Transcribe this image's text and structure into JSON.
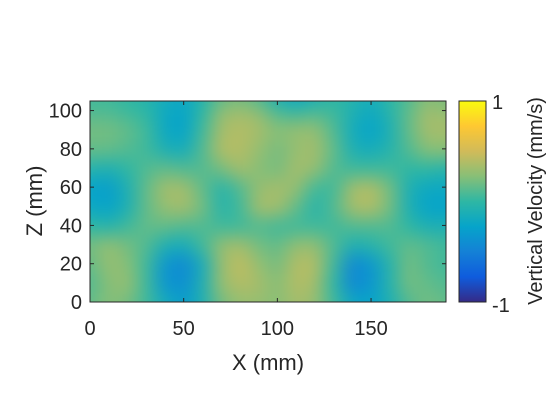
{
  "chart_data": {
    "type": "heatmap",
    "title": "",
    "xlabel": "X (mm)",
    "ylabel": "Z (mm)",
    "xlim": [
      0,
      190
    ],
    "ylim": [
      0,
      105
    ],
    "xticks": [
      0,
      50,
      100,
      150
    ],
    "yticks": [
      0,
      20,
      40,
      60,
      80,
      100
    ],
    "x_tick_labels": [
      "0",
      "50",
      "100",
      "150"
    ],
    "y_tick_labels": [
      "0",
      "20",
      "40",
      "60",
      "80",
      "100"
    ],
    "colorbar": {
      "label": "Vertical Velocity  (mm/s)",
      "min": -1,
      "max": 1,
      "tick_labels": [
        "1",
        "-1"
      ],
      "colormap": "parula",
      "colors": [
        "#352a87",
        "#0f5cdd",
        "#1481d6",
        "#06a4ca",
        "#2eb7a4",
        "#87bf77",
        "#d1bb59",
        "#fec832",
        "#f9fb0e"
      ]
    },
    "x": [
      0,
      10,
      20,
      30,
      40,
      50,
      60,
      70,
      80,
      90,
      100,
      110,
      120,
      130,
      140,
      150,
      160,
      170,
      180,
      190
    ],
    "z": [
      0,
      10,
      20,
      30,
      40,
      50,
      60,
      70,
      80,
      90,
      100,
      105
    ],
    "values": [
      [
        0.15,
        0.25,
        0.2,
        0.05,
        -0.15,
        -0.3,
        -0.1,
        0.2,
        0.3,
        0.3,
        0.25,
        0.35,
        0.3,
        0.05,
        -0.2,
        -0.25,
        -0.1,
        0.1,
        0.2,
        0.15
      ],
      [
        0.1,
        0.25,
        0.3,
        0.05,
        -0.35,
        -0.4,
        -0.1,
        0.3,
        0.4,
        0.35,
        0.25,
        0.4,
        0.35,
        0.0,
        -0.45,
        -0.35,
        -0.05,
        0.2,
        0.15,
        0.1
      ],
      [
        0.15,
        0.3,
        0.25,
        0.05,
        -0.35,
        -0.45,
        -0.15,
        0.3,
        0.45,
        0.3,
        0.2,
        0.4,
        0.4,
        0.05,
        -0.45,
        -0.35,
        -0.05,
        0.2,
        0.1,
        0.05
      ],
      [
        0.2,
        0.3,
        0.2,
        0.1,
        -0.1,
        -0.15,
        0.05,
        0.3,
        0.35,
        0.2,
        0.15,
        0.3,
        0.3,
        0.1,
        -0.1,
        -0.05,
        0.05,
        0.15,
        0.1,
        0.05
      ],
      [
        0.0,
        -0.05,
        0.05,
        0.15,
        0.15,
        0.1,
        0.1,
        0.05,
        0.05,
        0.1,
        0.05,
        0.05,
        0.05,
        0.05,
        0.1,
        0.1,
        0.1,
        0.0,
        -0.1,
        -0.1
      ],
      [
        -0.2,
        -0.25,
        -0.1,
        0.15,
        0.3,
        0.35,
        0.2,
        -0.05,
        0.05,
        0.35,
        0.35,
        0.15,
        -0.05,
        0.1,
        0.35,
        0.4,
        0.2,
        -0.1,
        -0.25,
        -0.25
      ],
      [
        -0.25,
        -0.3,
        -0.1,
        0.15,
        0.35,
        0.35,
        0.15,
        -0.05,
        0.1,
        0.3,
        0.35,
        0.3,
        0.05,
        0.05,
        0.35,
        0.4,
        0.2,
        -0.1,
        -0.2,
        -0.2
      ],
      [
        -0.05,
        -0.1,
        0.0,
        0.1,
        0.15,
        0.1,
        0.1,
        0.2,
        0.35,
        0.25,
        0.2,
        0.35,
        0.3,
        0.1,
        0.05,
        0.05,
        0.05,
        0.0,
        0.0,
        -0.05
      ],
      [
        0.15,
        0.15,
        0.1,
        0.05,
        -0.1,
        -0.15,
        0.1,
        0.4,
        0.4,
        0.3,
        0.2,
        0.3,
        0.35,
        0.15,
        -0.1,
        -0.15,
        -0.05,
        0.1,
        0.25,
        0.25
      ],
      [
        0.2,
        0.2,
        0.15,
        0.05,
        -0.2,
        -0.25,
        0.05,
        0.35,
        0.4,
        0.35,
        0.25,
        0.3,
        0.3,
        0.1,
        -0.15,
        -0.25,
        -0.1,
        0.15,
        0.35,
        0.35
      ],
      [
        0.1,
        0.1,
        0.05,
        0.0,
        -0.2,
        -0.25,
        0.0,
        0.3,
        0.35,
        0.3,
        0.1,
        0.05,
        0.1,
        0.05,
        -0.1,
        -0.2,
        -0.05,
        0.15,
        0.35,
        0.3
      ],
      [
        0.05,
        0.05,
        0.0,
        -0.05,
        -0.15,
        -0.2,
        -0.05,
        0.15,
        0.2,
        0.1,
        -0.1,
        -0.2,
        -0.1,
        0.0,
        -0.05,
        -0.15,
        0.0,
        0.1,
        0.25,
        0.2
      ]
    ]
  }
}
